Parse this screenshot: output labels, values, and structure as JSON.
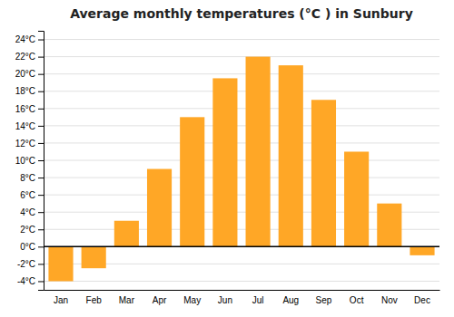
{
  "chart_data": {
    "type": "bar",
    "title": "Average monthly temperatures (°C ) in Sunbury",
    "categories": [
      "Jan",
      "Feb",
      "Mar",
      "Apr",
      "May",
      "Jun",
      "Jul",
      "Aug",
      "Sep",
      "Oct",
      "Nov",
      "Dec"
    ],
    "values": [
      -4.0,
      -2.5,
      3.0,
      9.0,
      15.0,
      19.5,
      22.0,
      21.0,
      17.0,
      11.0,
      5.0,
      -1.0
    ],
    "color": "#FFA726",
    "ylim": [
      -5,
      25
    ],
    "yticks": [
      {
        "value": -4,
        "label": "-4°C"
      },
      {
        "value": -2,
        "label": "-2°C"
      },
      {
        "value": 0,
        "label": "0°C"
      },
      {
        "value": 2,
        "label": "2°C"
      },
      {
        "value": 4,
        "label": "4°C"
      },
      {
        "value": 6,
        "label": "6°C"
      },
      {
        "value": 8,
        "label": "8°C"
      },
      {
        "value": 10,
        "label": "10°C"
      },
      {
        "value": 12,
        "label": "12°C"
      },
      {
        "value": 14,
        "label": "14°C"
      },
      {
        "value": 16,
        "label": "16°C"
      },
      {
        "value": 18,
        "label": "18°C"
      },
      {
        "value": 20,
        "label": "20°C"
      },
      {
        "value": 22,
        "label": "22°C"
      },
      {
        "value": 24,
        "label": "24°C"
      }
    ],
    "grid": true
  }
}
